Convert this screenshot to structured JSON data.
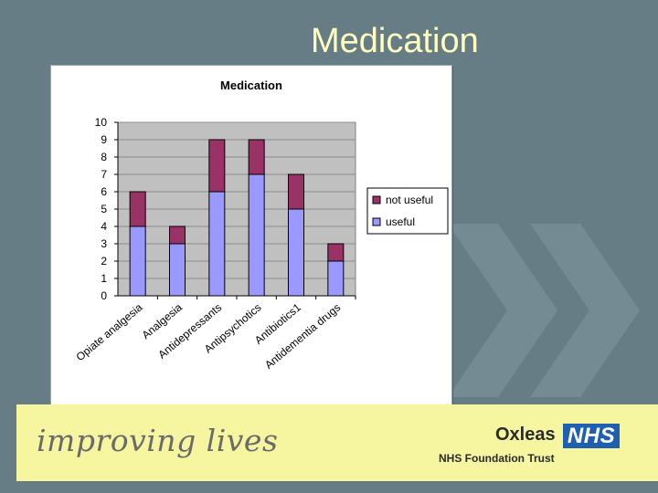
{
  "slide": {
    "title": "Medication"
  },
  "footer": {
    "tagline": "improving lives",
    "org_name": "Oxleas",
    "nhs_logo": "NHS",
    "subtitle": "NHS Foundation Trust"
  },
  "colors": {
    "background": "#667d86",
    "title_text": "#ffffc0",
    "footer_background": "#f6f5a0",
    "useful": "#9999ff",
    "not_useful": "#993366",
    "plot_area": "#c0c0c0",
    "nhs_blue": "#1f5fb0"
  },
  "chart_data": {
    "type": "bar",
    "stacked": true,
    "title": "Medication",
    "categories": [
      "Opiate analgesia",
      "Analgesia",
      "Antidepressants",
      "Antipsychotics",
      "Antibiotics1",
      "Antidementia drugs"
    ],
    "series": [
      {
        "name": "useful",
        "values": [
          4,
          3,
          6,
          7,
          5,
          2
        ]
      },
      {
        "name": "not useful",
        "values": [
          2,
          1,
          3,
          2,
          2,
          1
        ]
      }
    ],
    "yticks": [
      "0",
      "1",
      "2",
      "3",
      "4",
      "5",
      "6",
      "7",
      "8",
      "9",
      "10"
    ],
    "ylim": [
      0,
      10
    ],
    "grid": true,
    "legend_position": "right"
  }
}
